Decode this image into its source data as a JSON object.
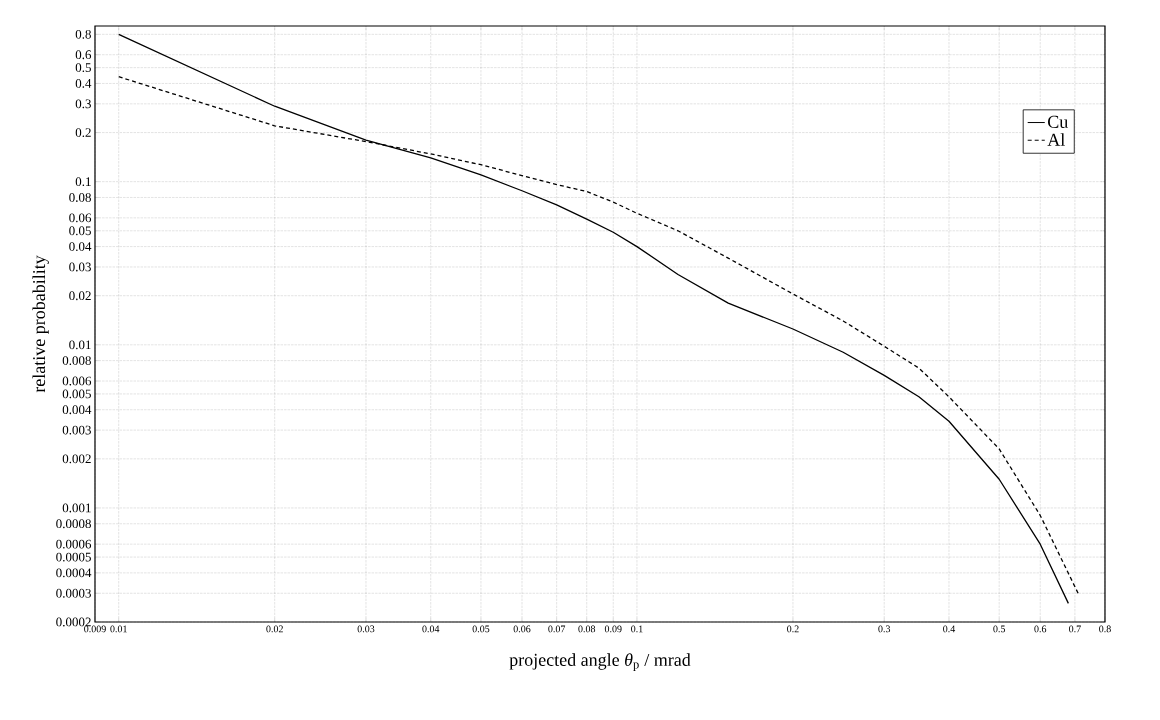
{
  "chart_data": {
    "type": "line",
    "xlabel": "projected angle  *θ*$_{p}$  / mrad",
    "ylabel": "relative probability",
    "log": "xy",
    "grid": true,
    "legend": "top right",
    "xlim": [
      0.009,
      0.8
    ],
    "ylim": [
      0.0002,
      0.9
    ],
    "xticks": [
      0.009,
      0.01,
      0.02,
      0.03,
      0.04,
      0.05,
      0.06,
      0.07,
      0.08,
      0.09,
      0.1,
      0.2,
      0.3,
      0.4,
      0.5,
      0.6,
      0.7,
      0.8
    ],
    "yticks": [
      0.0002,
      0.0003,
      0.0004,
      0.0005,
      0.0006,
      0.0008,
      0.001,
      0.002,
      0.003,
      0.004,
      0.005,
      0.006,
      0.008,
      0.01,
      0.02,
      0.03,
      0.04,
      0.05,
      0.06,
      0.08,
      0.1,
      0.2,
      0.3,
      0.4,
      0.5,
      0.6,
      0.8
    ],
    "series": [
      {
        "name": "Cu",
        "color": "#000000",
        "line_style": "solid",
        "x": [
          0.01,
          0.02,
          0.03,
          0.04,
          0.05,
          0.06,
          0.07,
          0.08,
          0.09,
          0.1,
          0.12,
          0.15,
          0.2,
          0.25,
          0.3,
          0.35,
          0.4,
          0.5,
          0.6,
          0.68
        ],
        "values": [
          0.8,
          0.29,
          0.18,
          0.14,
          0.11,
          0.088,
          0.072,
          0.059,
          0.049,
          0.04,
          0.027,
          0.018,
          0.0125,
          0.009,
          0.0065,
          0.0048,
          0.0034,
          0.0015,
          0.0006,
          0.00026
        ]
      },
      {
        "name": "Al",
        "color": "#000000",
        "line_style": "dashed",
        "x": [
          0.01,
          0.02,
          0.03,
          0.04,
          0.05,
          0.06,
          0.07,
          0.08,
          0.09,
          0.1,
          0.12,
          0.15,
          0.2,
          0.25,
          0.3,
          0.35,
          0.4,
          0.5,
          0.6,
          0.71
        ],
        "values": [
          0.44,
          0.22,
          0.176,
          0.148,
          0.127,
          0.109,
          0.096,
          0.087,
          0.075,
          0.064,
          0.05,
          0.034,
          0.0205,
          0.014,
          0.0098,
          0.0072,
          0.0048,
          0.0023,
          0.0009,
          0.0003
        ]
      }
    ]
  }
}
